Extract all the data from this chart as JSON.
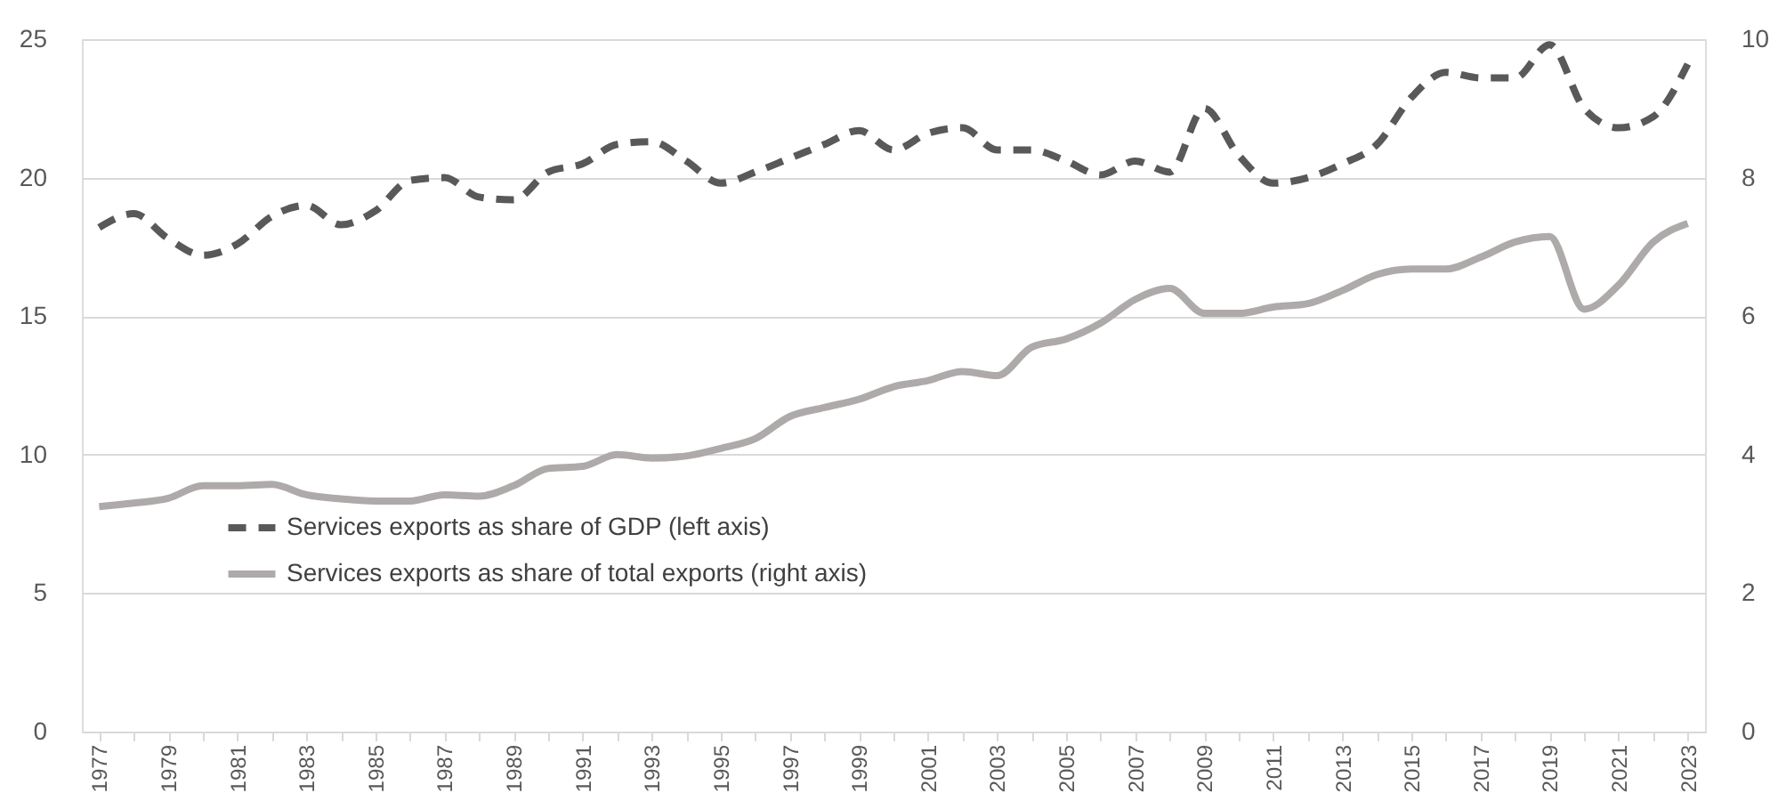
{
  "chart_data": {
    "type": "line",
    "categories": [
      "1977",
      null,
      "1979",
      null,
      "1981",
      null,
      "1983",
      null,
      "1985",
      null,
      "1987",
      null,
      "1989",
      null,
      "1991",
      null,
      "1993",
      null,
      "1995",
      null,
      "1997",
      null,
      "1999",
      null,
      "2001",
      null,
      "2003",
      null,
      "2005",
      null,
      "2007",
      null,
      "2009",
      null,
      "2011",
      null,
      "2013",
      null,
      "2015",
      null,
      "2017",
      null,
      "2019",
      null,
      "2021",
      null,
      "2023"
    ],
    "series": [
      {
        "name": "Services exports as share of GDP (left axis)",
        "color": "#595959",
        "line_style": "dashed",
        "axis": "y",
        "values": [
          18.2,
          18.7,
          17.8,
          17.2,
          17.6,
          18.6,
          19.0,
          18.3,
          18.8,
          19.9,
          20.0,
          19.3,
          19.2,
          20.2,
          20.5,
          21.2,
          21.3,
          20.6,
          19.8,
          20.2,
          20.7,
          21.2,
          21.7,
          21.0,
          21.6,
          21.8,
          21.0,
          21.0,
          20.6,
          20.1,
          20.6,
          20.2,
          22.5,
          20.8,
          19.8,
          20.0,
          20.5,
          21.2,
          22.9,
          23.8,
          23.6,
          23.6,
          24.8,
          22.5,
          21.8,
          22.2,
          24.1
        ]
      },
      {
        "name": "Services exports as share of total exports (right axis)",
        "color": "#aeaaaa",
        "line_style": "solid",
        "axis": "y2",
        "values": [
          3.25,
          3.3,
          3.37,
          3.55,
          3.55,
          3.57,
          3.42,
          3.36,
          3.33,
          3.33,
          3.42,
          3.4,
          3.55,
          3.8,
          3.83,
          4.0,
          3.95,
          3.98,
          4.09,
          4.23,
          4.55,
          4.68,
          4.8,
          4.98,
          5.07,
          5.2,
          5.14,
          5.55,
          5.67,
          5.9,
          6.24,
          6.4,
          6.04,
          6.04,
          6.13,
          6.18,
          6.37,
          6.6,
          6.68,
          6.68,
          6.85,
          7.07,
          7.15,
          6.1,
          6.45,
          7.07,
          7.34
        ]
      }
    ],
    "ylim": [
      0,
      25
    ],
    "yticks": [
      0,
      5,
      10,
      15,
      20,
      25
    ],
    "y2lim": [
      0,
      10
    ],
    "y2ticks": [
      0,
      2,
      4,
      6,
      8,
      10
    ],
    "grid": "y",
    "legend": "bottom left"
  }
}
